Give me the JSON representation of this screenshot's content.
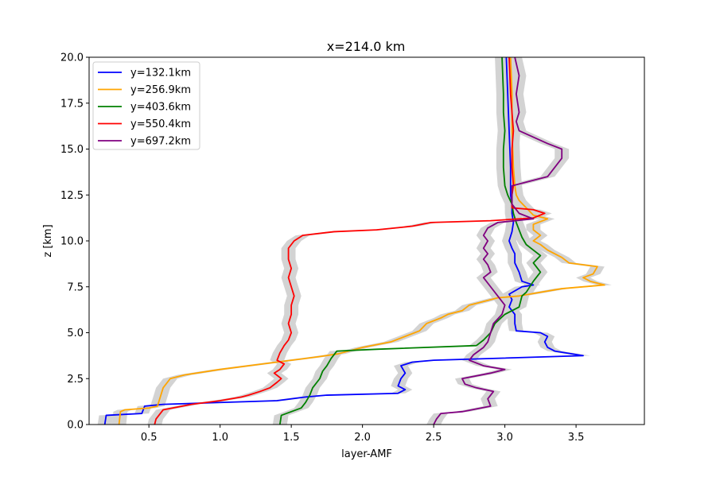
{
  "chart_data": {
    "type": "line",
    "orientation": "profile",
    "title": "x=214.0 km",
    "xlabel": "layer-AMF",
    "ylabel": "z [km]",
    "xlim": [
      0.08,
      3.98
    ],
    "ylim": [
      0,
      20
    ],
    "xticks": [
      "0.5",
      "1.0",
      "1.5",
      "2.0",
      "2.5",
      "3.0",
      "3.5"
    ],
    "xtick_values": [
      0.5,
      1.0,
      1.5,
      2.0,
      2.5,
      3.0,
      3.5
    ],
    "yticks": [
      "0.0",
      "2.5",
      "5.0",
      "7.5",
      "10.0",
      "12.5",
      "15.0",
      "17.5",
      "20.0"
    ],
    "ytick_values": [
      0,
      2.5,
      5,
      7.5,
      10,
      12.5,
      15,
      17.5,
      20
    ],
    "grid": false,
    "legend_position": "upper-left",
    "band_color": "#d3d3d3",
    "series": [
      {
        "name": "y=132.1km",
        "color": "#0000ff",
        "points": [
          [
            0.19,
            0
          ],
          [
            0.2,
            0.5
          ],
          [
            0.45,
            0.6
          ],
          [
            0.47,
            1.0
          ],
          [
            0.6,
            1.1
          ],
          [
            1.4,
            1.3
          ],
          [
            1.6,
            1.5
          ],
          [
            1.75,
            1.6
          ],
          [
            2.25,
            1.7
          ],
          [
            2.3,
            1.9
          ],
          [
            2.25,
            2.1
          ],
          [
            2.27,
            2.5
          ],
          [
            2.3,
            2.8
          ],
          [
            2.27,
            3.2
          ],
          [
            2.35,
            3.4
          ],
          [
            2.5,
            3.5
          ],
          [
            3.55,
            3.75
          ],
          [
            3.35,
            4.0
          ],
          [
            3.3,
            4.2
          ],
          [
            3.28,
            4.5
          ],
          [
            3.3,
            4.8
          ],
          [
            3.25,
            5.0
          ],
          [
            3.08,
            5.1
          ],
          [
            3.07,
            5.5
          ],
          [
            3.07,
            6.0
          ],
          [
            3.03,
            6.4
          ],
          [
            3.05,
            6.8
          ],
          [
            3.03,
            7.1
          ],
          [
            3.12,
            7.5
          ],
          [
            3.2,
            7.6
          ],
          [
            3.12,
            7.8
          ],
          [
            3.1,
            8.3
          ],
          [
            3.07,
            8.8
          ],
          [
            3.07,
            9.3
          ],
          [
            3.05,
            9.6
          ],
          [
            3.03,
            10.0
          ],
          [
            3.05,
            10.5
          ],
          [
            3.06,
            11.0
          ],
          [
            3.05,
            11.5
          ],
          [
            3.05,
            12.0
          ],
          [
            3.04,
            12.5
          ],
          [
            3.04,
            13.0
          ],
          [
            3.04,
            14.0
          ],
          [
            3.03,
            16.0
          ],
          [
            3.02,
            18.0
          ],
          [
            3.01,
            20.0
          ]
        ]
      },
      {
        "name": "y=256.9km",
        "color": "#ffa500",
        "points": [
          [
            0.29,
            0
          ],
          [
            0.3,
            0.7
          ],
          [
            0.33,
            0.8
          ],
          [
            0.5,
            0.9
          ],
          [
            0.56,
            1.0
          ],
          [
            0.58,
            1.5
          ],
          [
            0.6,
            2.0
          ],
          [
            0.65,
            2.5
          ],
          [
            0.75,
            2.7
          ],
          [
            1.0,
            3.0
          ],
          [
            1.3,
            3.3
          ],
          [
            1.5,
            3.5
          ],
          [
            1.7,
            3.7
          ],
          [
            1.83,
            3.85
          ],
          [
            2.0,
            4.2
          ],
          [
            2.2,
            4.5
          ],
          [
            2.3,
            4.8
          ],
          [
            2.4,
            5.1
          ],
          [
            2.45,
            5.5
          ],
          [
            2.55,
            5.8
          ],
          [
            2.6,
            6.0
          ],
          [
            2.7,
            6.2
          ],
          [
            2.75,
            6.5
          ],
          [
            2.85,
            6.7
          ],
          [
            2.95,
            6.9
          ],
          [
            3.1,
            7.0
          ],
          [
            3.4,
            7.4
          ],
          [
            3.7,
            7.6
          ],
          [
            3.6,
            7.8
          ],
          [
            3.55,
            8.0
          ],
          [
            3.62,
            8.2
          ],
          [
            3.65,
            8.6
          ],
          [
            3.45,
            8.8
          ],
          [
            3.4,
            9.1
          ],
          [
            3.3,
            9.5
          ],
          [
            3.25,
            9.8
          ],
          [
            3.2,
            10.0
          ],
          [
            3.25,
            10.3
          ],
          [
            3.2,
            10.6
          ],
          [
            3.2,
            10.9
          ],
          [
            3.3,
            11.2
          ],
          [
            3.2,
            11.4
          ],
          [
            3.15,
            11.8
          ],
          [
            3.1,
            12.2
          ],
          [
            3.08,
            12.5
          ],
          [
            3.07,
            13.0
          ],
          [
            3.06,
            14.0
          ],
          [
            3.05,
            16.0
          ],
          [
            3.05,
            18.0
          ],
          [
            3.04,
            20.0
          ]
        ]
      },
      {
        "name": "y=403.6km",
        "color": "#008000",
        "points": [
          [
            1.42,
            0
          ],
          [
            1.43,
            0.5
          ],
          [
            1.5,
            0.7
          ],
          [
            1.57,
            0.9
          ],
          [
            1.6,
            1.2
          ],
          [
            1.63,
            1.6
          ],
          [
            1.65,
            2.0
          ],
          [
            1.7,
            2.5
          ],
          [
            1.72,
            2.9
          ],
          [
            1.75,
            3.2
          ],
          [
            1.78,
            3.6
          ],
          [
            1.82,
            4.0
          ],
          [
            2.1,
            4.1
          ],
          [
            2.8,
            4.3
          ],
          [
            2.85,
            4.6
          ],
          [
            2.9,
            5.0
          ],
          [
            2.93,
            5.5
          ],
          [
            3.0,
            6.0
          ],
          [
            3.1,
            6.4
          ],
          [
            3.12,
            7.0
          ],
          [
            3.15,
            7.2
          ],
          [
            3.2,
            7.8
          ],
          [
            3.25,
            8.3
          ],
          [
            3.2,
            8.8
          ],
          [
            3.25,
            9.2
          ],
          [
            3.2,
            9.5
          ],
          [
            3.15,
            9.8
          ],
          [
            3.12,
            10.2
          ],
          [
            3.1,
            10.6
          ],
          [
            3.08,
            11.0
          ],
          [
            3.06,
            11.5
          ],
          [
            3.05,
            12.0
          ],
          [
            3.02,
            12.5
          ],
          [
            3.0,
            13.0
          ],
          [
            2.99,
            14.0
          ],
          [
            2.99,
            15.0
          ],
          [
            3.0,
            16.0
          ],
          [
            2.99,
            17.0
          ],
          [
            2.99,
            18.0
          ],
          [
            2.98,
            20.0
          ]
        ]
      },
      {
        "name": "y=550.4km",
        "color": "#ff0000",
        "points": [
          [
            0.54,
            0
          ],
          [
            0.55,
            0.3
          ],
          [
            0.57,
            0.5
          ],
          [
            0.6,
            0.8
          ],
          [
            0.8,
            1.1
          ],
          [
            1.0,
            1.3
          ],
          [
            1.15,
            1.5
          ],
          [
            1.2,
            1.6
          ],
          [
            1.28,
            1.8
          ],
          [
            1.35,
            2.0
          ],
          [
            1.4,
            2.3
          ],
          [
            1.43,
            2.5
          ],
          [
            1.38,
            2.8
          ],
          [
            1.42,
            3.0
          ],
          [
            1.45,
            3.3
          ],
          [
            1.4,
            3.5
          ],
          [
            1.42,
            3.9
          ],
          [
            1.45,
            4.3
          ],
          [
            1.48,
            4.6
          ],
          [
            1.5,
            5.0
          ],
          [
            1.48,
            5.5
          ],
          [
            1.5,
            6.0
          ],
          [
            1.5,
            6.5
          ],
          [
            1.52,
            7.0
          ],
          [
            1.5,
            7.5
          ],
          [
            1.48,
            8.0
          ],
          [
            1.5,
            8.5
          ],
          [
            1.48,
            9.0
          ],
          [
            1.48,
            9.6
          ],
          [
            1.52,
            10.0
          ],
          [
            1.58,
            10.3
          ],
          [
            1.8,
            10.5
          ],
          [
            2.1,
            10.6
          ],
          [
            2.35,
            10.8
          ],
          [
            2.48,
            11.0
          ],
          [
            2.9,
            11.1
          ],
          [
            3.2,
            11.25
          ],
          [
            3.28,
            11.5
          ],
          [
            3.2,
            11.7
          ],
          [
            3.05,
            11.8
          ],
          [
            3.05,
            12.5
          ],
          [
            3.06,
            13.0
          ],
          [
            3.05,
            14.0
          ],
          [
            3.05,
            15.0
          ],
          [
            3.06,
            16.0
          ],
          [
            3.05,
            17.0
          ],
          [
            3.04,
            18.0
          ],
          [
            3.03,
            20.0
          ]
        ]
      },
      {
        "name": "y=697.2km",
        "color": "#800080",
        "points": [
          [
            2.5,
            0
          ],
          [
            2.52,
            0.3
          ],
          [
            2.55,
            0.6
          ],
          [
            2.7,
            0.7
          ],
          [
            2.9,
            1.0
          ],
          [
            2.88,
            1.4
          ],
          [
            2.92,
            1.8
          ],
          [
            2.8,
            2.0
          ],
          [
            2.72,
            2.2
          ],
          [
            2.7,
            2.5
          ],
          [
            2.9,
            2.8
          ],
          [
            3.0,
            3.0
          ],
          [
            2.85,
            3.2
          ],
          [
            2.75,
            3.5
          ],
          [
            2.78,
            3.8
          ],
          [
            2.85,
            4.2
          ],
          [
            2.88,
            4.5
          ],
          [
            2.9,
            5.0
          ],
          [
            2.92,
            5.5
          ],
          [
            2.98,
            6.0
          ],
          [
            3.0,
            6.5
          ],
          [
            2.95,
            7.0
          ],
          [
            2.9,
            7.5
          ],
          [
            2.85,
            8.0
          ],
          [
            2.9,
            8.3
          ],
          [
            2.88,
            8.7
          ],
          [
            2.85,
            9.0
          ],
          [
            2.88,
            9.3
          ],
          [
            2.85,
            9.6
          ],
          [
            2.88,
            10.0
          ],
          [
            2.85,
            10.3
          ],
          [
            2.88,
            10.7
          ],
          [
            2.95,
            11.0
          ],
          [
            3.2,
            11.2
          ],
          [
            3.1,
            11.5
          ],
          [
            3.05,
            12.0
          ],
          [
            3.05,
            13.0
          ],
          [
            3.3,
            13.5
          ],
          [
            3.4,
            14.5
          ],
          [
            3.4,
            15.0
          ],
          [
            3.3,
            15.3
          ],
          [
            3.1,
            16.0
          ],
          [
            3.08,
            16.5
          ],
          [
            3.1,
            17.0
          ],
          [
            3.08,
            18.0
          ],
          [
            3.1,
            19.0
          ],
          [
            3.07,
            20.0
          ]
        ]
      }
    ]
  }
}
